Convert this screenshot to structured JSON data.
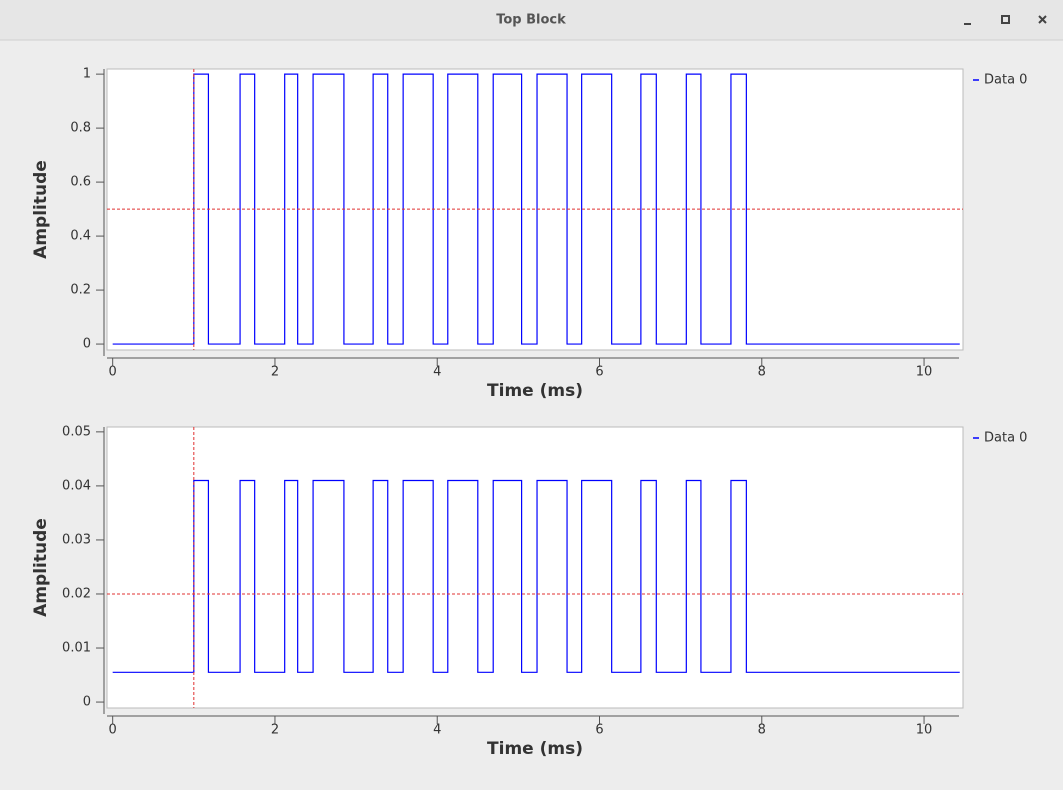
{
  "window_title": "Top Block",
  "chart_data": [
    {
      "type": "line",
      "ylabel": "Amplitude",
      "xlabel": "Time (ms)",
      "x": [
        0,
        1.0,
        1.0,
        1.18,
        1.18,
        1.57,
        1.57,
        1.75,
        1.75,
        2.12,
        2.12,
        2.28,
        2.28,
        2.47,
        2.47,
        2.85,
        2.85,
        3.21,
        3.21,
        3.39,
        3.39,
        3.58,
        3.58,
        3.95,
        3.95,
        4.13,
        4.13,
        4.5,
        4.5,
        4.69,
        4.69,
        5.04,
        5.04,
        5.23,
        5.23,
        5.6,
        5.6,
        5.78,
        5.78,
        6.15,
        6.15,
        6.51,
        6.51,
        6.7,
        6.7,
        7.07,
        7.07,
        7.25,
        7.25,
        7.62,
        7.62,
        7.81,
        7.81,
        10.44
      ],
      "series": [
        {
          "name": "Data 0",
          "color": "#0000ff",
          "values": [
            0,
            0,
            1,
            1,
            0,
            0,
            1,
            1,
            0,
            0,
            1,
            1,
            0,
            0,
            1,
            1,
            0,
            0,
            1,
            1,
            0,
            0,
            1,
            1,
            0,
            0,
            1,
            1,
            0,
            0,
            1,
            1,
            0,
            0,
            1,
            1,
            0,
            0,
            1,
            1,
            0,
            0,
            1,
            1,
            0,
            0,
            1,
            1,
            0,
            0,
            1,
            1,
            0,
            0
          ]
        }
      ],
      "xlim": [
        -0.07,
        10.48
      ],
      "xticks": [
        0,
        2,
        4,
        6,
        8,
        10
      ],
      "ylim": [
        -0.022,
        1.019
      ],
      "yticks": [
        0,
        0.2,
        0.4,
        0.6,
        0.8,
        1
      ],
      "trigger_time": 1.0,
      "trigger_level": 0.5,
      "trigger_color": "#e03030",
      "legend": "outside-right"
    },
    {
      "type": "line",
      "ylabel": "Amplitude",
      "xlabel": "Time (ms)",
      "x": [
        0,
        1.0,
        1.0,
        1.18,
        1.18,
        1.57,
        1.57,
        1.75,
        1.75,
        2.12,
        2.12,
        2.28,
        2.28,
        2.47,
        2.47,
        2.85,
        2.85,
        3.21,
        3.21,
        3.39,
        3.39,
        3.58,
        3.58,
        3.95,
        3.95,
        4.13,
        4.13,
        4.5,
        4.5,
        4.69,
        4.69,
        5.04,
        5.04,
        5.23,
        5.23,
        5.6,
        5.6,
        5.78,
        5.78,
        6.15,
        6.15,
        6.51,
        6.51,
        6.7,
        6.7,
        7.07,
        7.07,
        7.25,
        7.25,
        7.62,
        7.62,
        7.81,
        7.81,
        10.44
      ],
      "series": [
        {
          "name": "Data 0",
          "color": "#0000ff",
          "values": [
            0.0055,
            0.0055,
            0.041,
            0.041,
            0.0055,
            0.0055,
            0.041,
            0.041,
            0.0055,
            0.0055,
            0.041,
            0.041,
            0.0055,
            0.0055,
            0.041,
            0.041,
            0.0055,
            0.0055,
            0.041,
            0.041,
            0.0055,
            0.0055,
            0.041,
            0.041,
            0.0055,
            0.0055,
            0.041,
            0.041,
            0.0055,
            0.0055,
            0.041,
            0.041,
            0.0055,
            0.0055,
            0.041,
            0.041,
            0.0055,
            0.0055,
            0.041,
            0.041,
            0.0055,
            0.0055,
            0.041,
            0.041,
            0.0055,
            0.0055,
            0.041,
            0.041,
            0.0055,
            0.0055,
            0.041,
            0.041,
            0.0055,
            0.0055
          ]
        }
      ],
      "xlim": [
        -0.07,
        10.48
      ],
      "xticks": [
        0,
        2,
        4,
        6,
        8,
        10
      ],
      "ylim": [
        -0.0011,
        0.0509
      ],
      "yticks": [
        0,
        0.01,
        0.02,
        0.03,
        0.04,
        0.05
      ],
      "trigger_time": 1.0,
      "trigger_level": 0.02,
      "trigger_color": "#e03030",
      "legend": "outside-right"
    }
  ]
}
